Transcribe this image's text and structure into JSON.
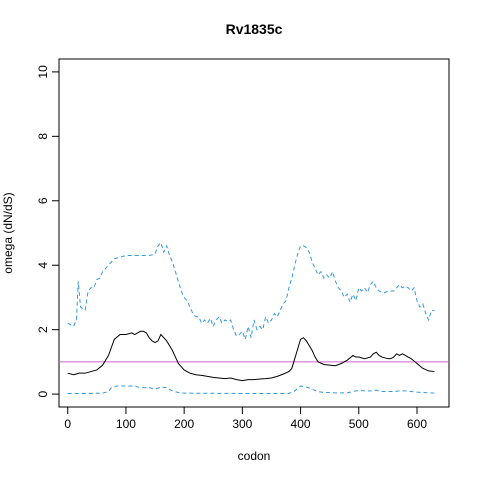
{
  "chart_data": {
    "type": "line",
    "title": "Rv1835c",
    "xlabel": "codon",
    "ylabel": "omega (dN/dS)",
    "xlim": [
      -15,
      655
    ],
    "ylim": [
      -0.4,
      10.4
    ],
    "x_ticks": [
      0,
      100,
      200,
      300,
      400,
      500,
      600
    ],
    "y_ticks": [
      0,
      2,
      4,
      6,
      8,
      10
    ],
    "grid": false,
    "reference_line": {
      "y": 1,
      "color": "#cc66cc"
    },
    "series": [
      {
        "role": "upper",
        "color": "#3399dd",
        "style": "dashed",
        "points": [
          [
            0,
            2.2
          ],
          [
            5,
            2.15
          ],
          [
            10,
            2.1
          ],
          [
            15,
            2.3
          ],
          [
            18,
            3.5
          ],
          [
            22,
            2.7
          ],
          [
            30,
            2.6
          ],
          [
            35,
            3.2
          ],
          [
            40,
            3.3
          ],
          [
            45,
            3.3
          ],
          [
            50,
            3.55
          ],
          [
            55,
            3.6
          ],
          [
            60,
            3.8
          ],
          [
            65,
            3.9
          ],
          [
            70,
            4.0
          ],
          [
            75,
            4.1
          ],
          [
            80,
            4.2
          ],
          [
            90,
            4.25
          ],
          [
            100,
            4.3
          ],
          [
            110,
            4.3
          ],
          [
            120,
            4.3
          ],
          [
            130,
            4.3
          ],
          [
            140,
            4.3
          ],
          [
            150,
            4.35
          ],
          [
            155,
            4.6
          ],
          [
            160,
            4.7
          ],
          [
            165,
            4.4
          ],
          [
            170,
            4.6
          ],
          [
            175,
            4.3
          ],
          [
            180,
            4.1
          ],
          [
            185,
            3.8
          ],
          [
            190,
            3.5
          ],
          [
            195,
            3.2
          ],
          [
            200,
            3.0
          ],
          [
            205,
            2.9
          ],
          [
            210,
            2.7
          ],
          [
            215,
            2.5
          ],
          [
            220,
            2.4
          ],
          [
            225,
            2.4
          ],
          [
            230,
            2.2
          ],
          [
            235,
            2.3
          ],
          [
            240,
            2.2
          ],
          [
            245,
            2.35
          ],
          [
            250,
            2.1
          ],
          [
            255,
            2.3
          ],
          [
            260,
            2.4
          ],
          [
            265,
            2.2
          ],
          [
            270,
            2.3
          ],
          [
            275,
            2.25
          ],
          [
            280,
            2.3
          ],
          [
            285,
            2.0
          ],
          [
            290,
            1.8
          ],
          [
            295,
            1.85
          ],
          [
            300,
            1.95
          ],
          [
            305,
            1.7
          ],
          [
            310,
            2.1
          ],
          [
            315,
            1.75
          ],
          [
            320,
            2.3
          ],
          [
            325,
            2.0
          ],
          [
            330,
            2.1
          ],
          [
            335,
            2.0
          ],
          [
            340,
            2.4
          ],
          [
            345,
            2.2
          ],
          [
            350,
            2.3
          ],
          [
            355,
            2.5
          ],
          [
            360,
            2.4
          ],
          [
            365,
            2.6
          ],
          [
            370,
            2.8
          ],
          [
            375,
            2.9
          ],
          [
            380,
            3.3
          ],
          [
            385,
            3.6
          ],
          [
            390,
            4.0
          ],
          [
            395,
            4.35
          ],
          [
            400,
            4.6
          ],
          [
            405,
            4.6
          ],
          [
            410,
            4.55
          ],
          [
            415,
            4.4
          ],
          [
            420,
            4.1
          ],
          [
            425,
            3.9
          ],
          [
            430,
            3.7
          ],
          [
            435,
            3.8
          ],
          [
            440,
            3.6
          ],
          [
            445,
            3.7
          ],
          [
            450,
            3.6
          ],
          [
            455,
            3.8
          ],
          [
            460,
            3.5
          ],
          [
            465,
            3.3
          ],
          [
            470,
            3.2
          ],
          [
            475,
            3.0
          ],
          [
            480,
            3.1
          ],
          [
            485,
            2.85
          ],
          [
            490,
            3.1
          ],
          [
            495,
            2.9
          ],
          [
            500,
            3.3
          ],
          [
            505,
            3.2
          ],
          [
            510,
            3.3
          ],
          [
            515,
            3.15
          ],
          [
            520,
            3.4
          ],
          [
            525,
            3.5
          ],
          [
            530,
            3.3
          ],
          [
            535,
            3.2
          ],
          [
            540,
            3.15
          ],
          [
            545,
            3.15
          ],
          [
            550,
            3.2
          ],
          [
            555,
            3.2
          ],
          [
            560,
            3.2
          ],
          [
            565,
            3.3
          ],
          [
            570,
            3.4
          ],
          [
            575,
            3.3
          ],
          [
            580,
            3.35
          ],
          [
            585,
            3.3
          ],
          [
            590,
            3.2
          ],
          [
            595,
            3.3
          ],
          [
            600,
            2.9
          ],
          [
            605,
            2.7
          ],
          [
            610,
            2.8
          ],
          [
            615,
            2.5
          ],
          [
            620,
            2.3
          ],
          [
            625,
            2.6
          ],
          [
            630,
            2.6
          ]
        ]
      },
      {
        "role": "estimate",
        "color": "#000000",
        "style": "solid",
        "points": [
          [
            0,
            0.65
          ],
          [
            10,
            0.6
          ],
          [
            20,
            0.65
          ],
          [
            30,
            0.65
          ],
          [
            40,
            0.7
          ],
          [
            50,
            0.75
          ],
          [
            60,
            0.9
          ],
          [
            70,
            1.2
          ],
          [
            75,
            1.45
          ],
          [
            80,
            1.7
          ],
          [
            90,
            1.85
          ],
          [
            100,
            1.85
          ],
          [
            110,
            1.9
          ],
          [
            115,
            1.85
          ],
          [
            120,
            1.9
          ],
          [
            125,
            1.95
          ],
          [
            130,
            1.95
          ],
          [
            135,
            1.9
          ],
          [
            140,
            1.75
          ],
          [
            145,
            1.65
          ],
          [
            150,
            1.6
          ],
          [
            155,
            1.65
          ],
          [
            160,
            1.85
          ],
          [
            165,
            1.75
          ],
          [
            170,
            1.65
          ],
          [
            175,
            1.5
          ],
          [
            180,
            1.35
          ],
          [
            185,
            1.15
          ],
          [
            190,
            0.95
          ],
          [
            195,
            0.85
          ],
          [
            200,
            0.75
          ],
          [
            210,
            0.65
          ],
          [
            220,
            0.6
          ],
          [
            230,
            0.58
          ],
          [
            240,
            0.55
          ],
          [
            250,
            0.52
          ],
          [
            260,
            0.5
          ],
          [
            270,
            0.48
          ],
          [
            280,
            0.5
          ],
          [
            290,
            0.45
          ],
          [
            300,
            0.42
          ],
          [
            310,
            0.45
          ],
          [
            320,
            0.45
          ],
          [
            330,
            0.47
          ],
          [
            340,
            0.48
          ],
          [
            350,
            0.5
          ],
          [
            360,
            0.55
          ],
          [
            370,
            0.62
          ],
          [
            380,
            0.7
          ],
          [
            385,
            0.8
          ],
          [
            390,
            1.1
          ],
          [
            395,
            1.4
          ],
          [
            400,
            1.7
          ],
          [
            405,
            1.75
          ],
          [
            410,
            1.65
          ],
          [
            415,
            1.5
          ],
          [
            420,
            1.35
          ],
          [
            425,
            1.15
          ],
          [
            430,
            1.0
          ],
          [
            440,
            0.92
          ],
          [
            450,
            0.9
          ],
          [
            460,
            0.88
          ],
          [
            470,
            0.95
          ],
          [
            480,
            1.05
          ],
          [
            490,
            1.2
          ],
          [
            495,
            1.15
          ],
          [
            500,
            1.15
          ],
          [
            510,
            1.1
          ],
          [
            520,
            1.15
          ],
          [
            525,
            1.25
          ],
          [
            530,
            1.3
          ],
          [
            535,
            1.2
          ],
          [
            540,
            1.15
          ],
          [
            550,
            1.1
          ],
          [
            555,
            1.1
          ],
          [
            560,
            1.15
          ],
          [
            565,
            1.25
          ],
          [
            570,
            1.2
          ],
          [
            575,
            1.25
          ],
          [
            580,
            1.2
          ],
          [
            585,
            1.15
          ],
          [
            590,
            1.1
          ],
          [
            600,
            0.95
          ],
          [
            610,
            0.8
          ],
          [
            620,
            0.72
          ],
          [
            630,
            0.7
          ]
        ]
      },
      {
        "role": "lower",
        "color": "#3399dd",
        "style": "dashed",
        "points": [
          [
            0,
            0.02
          ],
          [
            30,
            0.02
          ],
          [
            60,
            0.03
          ],
          [
            70,
            0.08
          ],
          [
            75,
            0.2
          ],
          [
            85,
            0.25
          ],
          [
            100,
            0.25
          ],
          [
            115,
            0.25
          ],
          [
            125,
            0.2
          ],
          [
            140,
            0.2
          ],
          [
            150,
            0.15
          ],
          [
            160,
            0.22
          ],
          [
            170,
            0.2
          ],
          [
            180,
            0.1
          ],
          [
            190,
            0.05
          ],
          [
            200,
            0.03
          ],
          [
            300,
            0.02
          ],
          [
            380,
            0.02
          ],
          [
            390,
            0.1
          ],
          [
            400,
            0.25
          ],
          [
            410,
            0.22
          ],
          [
            420,
            0.15
          ],
          [
            430,
            0.08
          ],
          [
            440,
            0.05
          ],
          [
            460,
            0.04
          ],
          [
            480,
            0.04
          ],
          [
            490,
            0.08
          ],
          [
            500,
            0.12
          ],
          [
            510,
            0.1
          ],
          [
            520,
            0.1
          ],
          [
            530,
            0.12
          ],
          [
            540,
            0.08
          ],
          [
            560,
            0.08
          ],
          [
            570,
            0.1
          ],
          [
            580,
            0.1
          ],
          [
            600,
            0.06
          ],
          [
            630,
            0.03
          ]
        ]
      }
    ]
  }
}
